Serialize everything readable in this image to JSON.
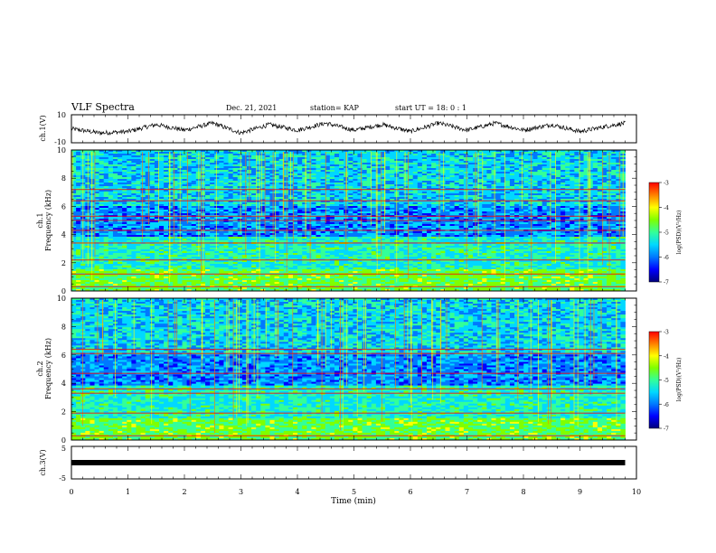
{
  "header": {
    "title": "VLF Spectra",
    "date": "Dec. 21, 2021",
    "station": "station= KAP",
    "start": "start  UT =   18: 0  : 1"
  },
  "panels": {
    "ch1_wave": {
      "ylabel": "ch.1(V)",
      "y_ticks": [
        "10",
        "-10"
      ]
    },
    "ch1_spec": {
      "ylabel_top": "ch.1",
      "ylabel": "Frequency (kHz)",
      "y_ticks": [
        "0",
        "2",
        "4",
        "6",
        "8",
        "10"
      ]
    },
    "ch2_spec": {
      "ylabel_top": "ch.2",
      "ylabel": "Frequency (kHz)",
      "y_ticks": [
        "0",
        "2",
        "4",
        "6",
        "8",
        "10"
      ]
    },
    "ch3_wave": {
      "ylabel": "ch.3(V)",
      "y_ticks": [
        "5",
        "-5"
      ]
    }
  },
  "colorbar": {
    "label": "log(PSD)(V²/Hz)",
    "ticks": [
      "-3",
      "-4",
      "-5",
      "-6",
      "-7"
    ]
  },
  "colors": {
    "scale": [
      "#00007a",
      "#0000ff",
      "#0078ff",
      "#00d8ff",
      "#33ff99",
      "#7fff00",
      "#ffff00",
      "#ff7f00",
      "#ff0000",
      "#ffffff"
    ],
    "trace": "#000000",
    "axes": "#000000"
  },
  "chart_data": [
    {
      "type": "line",
      "title": "VLF Spectra",
      "panel": "ch.1 waveform",
      "xlabel": "Time (min)",
      "ylabel": "ch.1(V)",
      "xlim": [
        0,
        10
      ],
      "ylim": [
        -10,
        10
      ],
      "x": [
        0.0,
        0.5,
        1.0,
        1.5,
        2.0,
        2.5,
        3.0,
        3.5,
        4.0,
        4.5,
        5.0,
        5.5,
        6.0,
        6.5,
        7.0,
        7.5,
        8.0,
        8.5,
        9.0,
        9.5,
        9.8
      ],
      "series": [
        {
          "values": [
            0,
            -3,
            -2,
            3,
            -1,
            4,
            -3,
            3,
            -1,
            4,
            -1,
            3,
            -2,
            4,
            -1,
            4,
            -1,
            3,
            -2,
            2,
            4
          ]
        }
      ]
    },
    {
      "type": "heatmap",
      "panel": "ch.1 spectrogram",
      "xlabel": "Time (min)",
      "ylabel": "Frequency (kHz)",
      "xlim": [
        0,
        10
      ],
      "ylim": [
        0,
        10
      ],
      "colorbar_label": "log(PSD)(V²/Hz)",
      "clim": [
        -7,
        -3
      ],
      "data_extent_x": [
        0,
        9.8
      ],
      "band_frequencies_khz": [
        0.3,
        1.2,
        2.2,
        3.4,
        4.3,
        5.0,
        5.3,
        6.4,
        7.2
      ]
    },
    {
      "type": "heatmap",
      "panel": "ch.2 spectrogram",
      "xlabel": "Time (min)",
      "ylabel": "Frequency (kHz)",
      "xlim": [
        0,
        10
      ],
      "ylim": [
        0,
        10
      ],
      "colorbar_label": "log(PSD)(V²/Hz)",
      "clim": [
        -7,
        -3
      ],
      "data_extent_x": [
        0,
        9.8
      ],
      "band_frequencies_khz": [
        0.3,
        1.9,
        3.3,
        3.6,
        4.7,
        6.1,
        6.4
      ]
    },
    {
      "type": "line",
      "panel": "ch.3 waveform",
      "xlabel": "Time (min)",
      "ylabel": "ch.3(V)",
      "xlim": [
        0,
        10
      ],
      "ylim": [
        -5,
        5
      ],
      "x": [
        0,
        9.8
      ],
      "series": [
        {
          "values": [
            0,
            0
          ]
        }
      ]
    }
  ],
  "xaxis": {
    "label": "Time (min)",
    "ticks": [
      "0",
      "1",
      "2",
      "3",
      "4",
      "5",
      "6",
      "7",
      "8",
      "9",
      "10"
    ]
  }
}
